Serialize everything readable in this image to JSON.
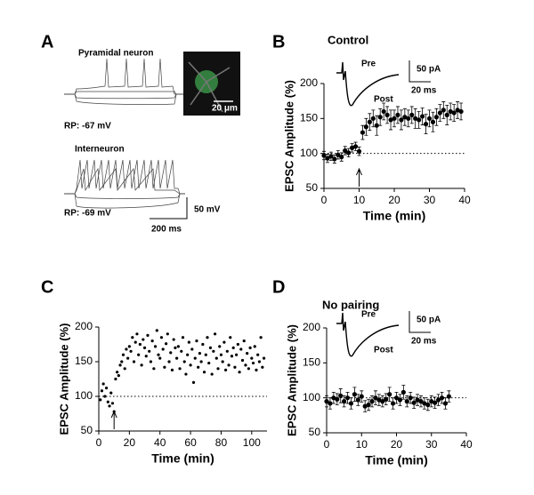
{
  "figure": {
    "panel_labels": [
      "A",
      "B",
      "C",
      "D"
    ],
    "panel_a": {
      "pyramidal_label": "Pyramidal neuron",
      "pyramidal_rp": "RP: -67 mV",
      "interneuron_label": "Interneuron",
      "interneuron_rp": "RP: -69 mV",
      "image_scale": "20 μm",
      "voltage_scale": "50 mV",
      "time_scale": "200 ms"
    }
  },
  "chart_data": [
    {
      "type": "scatter",
      "subtitle": "Control",
      "xlabel": "Time (min)",
      "ylabel": "EPSC Amplitude (%)",
      "inset": {
        "pre": "Pre",
        "post": "Post",
        "current_scale": "50 pA",
        "time_scale": "20 ms"
      },
      "x": [
        0,
        1,
        2,
        3,
        4,
        5,
        6,
        7,
        8,
        9,
        10,
        11,
        12,
        13,
        14,
        15,
        16,
        17,
        18,
        19,
        20,
        21,
        22,
        23,
        24,
        25,
        26,
        27,
        28,
        29,
        30,
        31,
        32,
        33,
        34,
        35,
        36,
        37,
        38,
        39
      ],
      "values": [
        97,
        93,
        96,
        92,
        98,
        95,
        104,
        101,
        108,
        110,
        103,
        130,
        138,
        145,
        150,
        140,
        152,
        160,
        155,
        148,
        150,
        155,
        148,
        152,
        150,
        155,
        150,
        148,
        153,
        142,
        150,
        145,
        152,
        158,
        162,
        155,
        160,
        158,
        162,
        160
      ],
      "errors": [
        6,
        6,
        6,
        6,
        6,
        6,
        6,
        6,
        6,
        6,
        6,
        10,
        12,
        12,
        12,
        14,
        12,
        12,
        12,
        14,
        12,
        12,
        14,
        12,
        12,
        12,
        14,
        12,
        12,
        14,
        12,
        14,
        12,
        12,
        12,
        14,
        12,
        12,
        12,
        12
      ],
      "color": "#000000",
      "xlim": [
        0,
        40
      ],
      "ylim": [
        50,
        200
      ],
      "xticks": [
        0,
        10,
        20,
        30,
        40
      ],
      "yticks": [
        50,
        100,
        150,
        200
      ],
      "reference_line": 100,
      "arrow_x": 10
    },
    {
      "type": "scatter",
      "xlabel": "Time (min)",
      "ylabel": "EPSC Amplitude (%)",
      "x": [
        1,
        2,
        3,
        4,
        5,
        6,
        7,
        8,
        9,
        10,
        11,
        12,
        13,
        14,
        15,
        16,
        17,
        18,
        19,
        20,
        21,
        22,
        23,
        24,
        25,
        26,
        27,
        28,
        29,
        30,
        31,
        32,
        33,
        34,
        35,
        36,
        37,
        38,
        39,
        40,
        41,
        42,
        43,
        44,
        45,
        46,
        47,
        48,
        49,
        50,
        51,
        52,
        53,
        54,
        55,
        56,
        57,
        58,
        59,
        60,
        61,
        62,
        63,
        64,
        65,
        66,
        67,
        68,
        69,
        70,
        71,
        72,
        73,
        74,
        75,
        76,
        77,
        78,
        79,
        80,
        81,
        82,
        83,
        84,
        85,
        86,
        87,
        88,
        89,
        90,
        91,
        92,
        93,
        94,
        95,
        96,
        97,
        98,
        99,
        100,
        101,
        102,
        103,
        104,
        105,
        106,
        107,
        108
      ],
      "values": [
        95,
        108,
        118,
        100,
        112,
        92,
        86,
        105,
        90,
        78,
        125,
        135,
        130,
        145,
        150,
        160,
        140,
        168,
        155,
        172,
        165,
        185,
        150,
        178,
        190,
        160,
        175,
        145,
        182,
        170,
        158,
        188,
        165,
        150,
        180,
        140,
        172,
        195,
        160,
        155,
        185,
        168,
        142,
        176,
        190,
        150,
        163,
        138,
        182,
        170,
        155,
        172,
        140,
        165,
        185,
        150,
        132,
        160,
        178,
        145,
        168,
        120,
        155,
        180,
        142,
        162,
        150,
        175,
        135,
        160,
        185,
        148,
        170,
        132,
        165,
        190,
        155,
        140,
        172,
        160,
        150,
        178,
        138,
        165,
        145,
        185,
        158,
        170,
        142,
        160,
        175,
        135,
        168,
        152,
        180,
        145,
        162,
        140,
        170,
        155,
        148,
        172,
        138,
        160,
        150,
        185,
        142,
        155
      ],
      "color": "#000000",
      "xlim": [
        0,
        110
      ],
      "ylim": [
        50,
        200
      ],
      "xticks": [
        0,
        20,
        40,
        60,
        80,
        100
      ],
      "yticks": [
        50,
        100,
        150,
        200
      ],
      "reference_line": 100,
      "arrow_x": 10
    },
    {
      "type": "scatter",
      "subtitle": "No pairing",
      "xlabel": "Time (min)",
      "ylabel": "EPSC Amplitude (%)",
      "inset": {
        "pre": "Pre",
        "post": "Post",
        "current_scale": "50 pA",
        "time_scale": "20 ms"
      },
      "x": [
        0,
        1,
        2,
        3,
        4,
        5,
        6,
        7,
        8,
        9,
        10,
        11,
        12,
        13,
        14,
        15,
        16,
        17,
        18,
        19,
        20,
        21,
        22,
        23,
        24,
        25,
        26,
        27,
        28,
        29,
        30,
        31,
        32,
        33,
        34,
        35
      ],
      "values": [
        95,
        92,
        100,
        98,
        103,
        95,
        100,
        92,
        105,
        97,
        102,
        88,
        90,
        95,
        100,
        97,
        95,
        98,
        105,
        92,
        100,
        97,
        108,
        95,
        100,
        93,
        97,
        95,
        92,
        90,
        95,
        93,
        97,
        100,
        92,
        102
      ],
      "errors": [
        8,
        8,
        8,
        8,
        10,
        8,
        8,
        8,
        10,
        8,
        8,
        8,
        8,
        8,
        10,
        8,
        8,
        8,
        10,
        8,
        8,
        8,
        10,
        8,
        8,
        8,
        8,
        8,
        8,
        8,
        8,
        8,
        8,
        8,
        8,
        8
      ],
      "color": "#000000",
      "xlim": [
        0,
        40
      ],
      "ylim": [
        50,
        200
      ],
      "xticks": [
        0,
        10,
        20,
        30,
        40
      ],
      "yticks": [
        50,
        100,
        150,
        200
      ],
      "reference_line": 100
    }
  ]
}
